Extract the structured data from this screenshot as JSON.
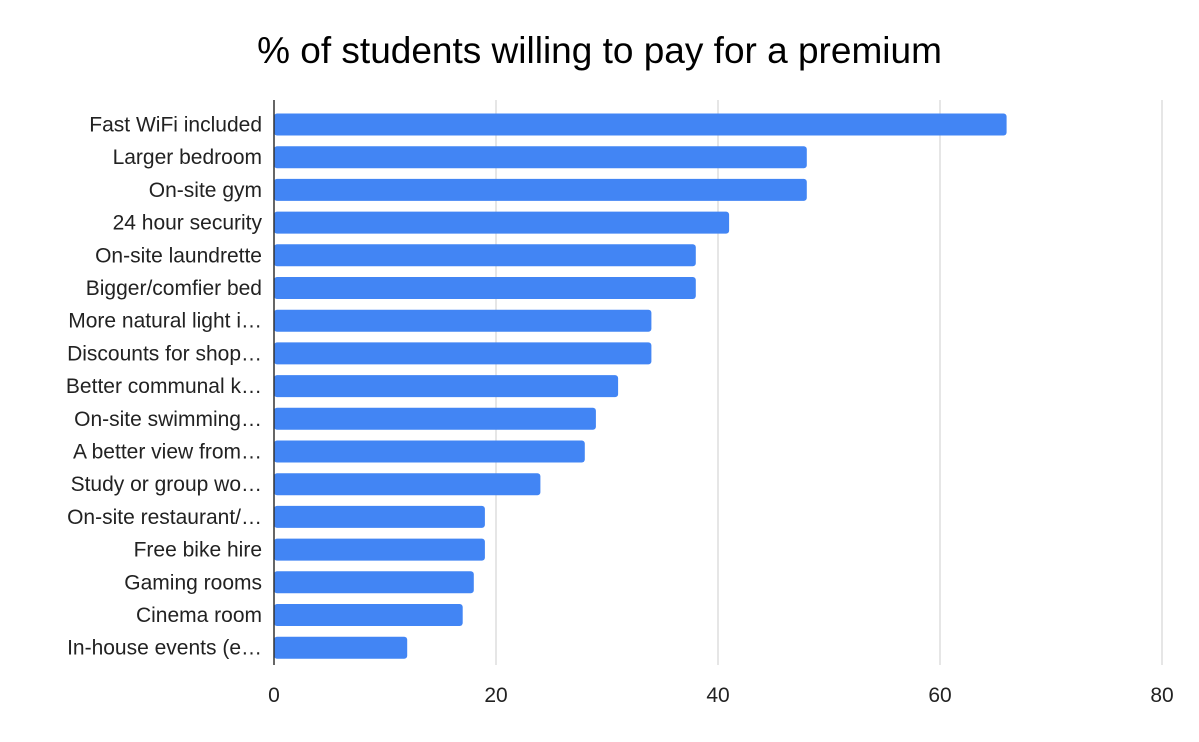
{
  "chart_data": {
    "type": "bar",
    "orientation": "horizontal",
    "title": "% of students willing to pay for a premium",
    "xlabel": "",
    "ylabel": "",
    "categories": [
      "Fast WiFi included",
      "Larger bedroom",
      "On-site gym",
      "24 hour security",
      "On-site laundrette",
      "Bigger/comfier bed",
      "More natural light i…",
      "Discounts for shop…",
      "Better communal k…",
      "On-site swimming…",
      "A better view from…",
      "Study or group wo…",
      "On-site restaurant/…",
      "Free bike hire",
      "Gaming rooms",
      "Cinema room",
      "In-house events (e…"
    ],
    "values": [
      66,
      48,
      48,
      41,
      38,
      38,
      34,
      34,
      31,
      29,
      28,
      24,
      19,
      19,
      18,
      17,
      12
    ],
    "xlim": [
      0,
      80
    ],
    "xticks": [
      "0",
      "20",
      "40",
      "60",
      "80"
    ],
    "grid": true,
    "bar_color": "#4285f4",
    "grid_color": "#cccccc",
    "axis_color": "#333333"
  }
}
